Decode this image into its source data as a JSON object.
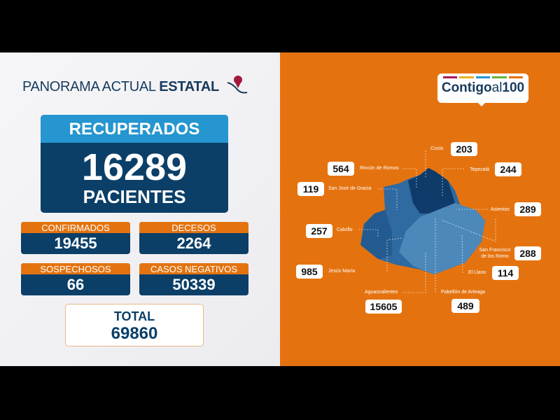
{
  "header": {
    "title_regular": "PANORAMA ACTUAL",
    "title_bold": "ESTATAL",
    "icon": "mexico-map-pin-icon"
  },
  "recuperados": {
    "label": "RECUPERADOS",
    "value": "16289",
    "unit": "PACIENTES"
  },
  "stats": [
    {
      "label": "CONFIRMADOS",
      "value": "19455"
    },
    {
      "label": "DECESOS",
      "value": "2264"
    },
    {
      "label": "SOSPECHOSOS",
      "value": "66"
    },
    {
      "label": "CASOS NEGATIVOS",
      "value": "50339"
    }
  ],
  "total": {
    "label": "TOTAL",
    "value": "69860"
  },
  "logo": {
    "text_bold": "Contigo",
    "text_light": "al",
    "text_num": "100",
    "bar_colors": [
      "#a3195b",
      "#e5b428",
      "#2596cf",
      "#6bb23a",
      "#e4730f"
    ]
  },
  "colors": {
    "orange": "#e4730f",
    "navy": "#0b3f68",
    "blue": "#2596cf"
  },
  "municipios": [
    {
      "name": "Cosío",
      "value": "203"
    },
    {
      "name": "Rincón de Romos",
      "value": "564"
    },
    {
      "name": "Tepezalá",
      "value": "244"
    },
    {
      "name": "San José de Gracia",
      "value": "119"
    },
    {
      "name": "Asientos",
      "value": "289"
    },
    {
      "name": "Calvillo",
      "value": "257"
    },
    {
      "name": "San Francisco de los Romo",
      "value": "288"
    },
    {
      "name": "Jesús María",
      "value": "985"
    },
    {
      "name": "El Llano",
      "value": "114"
    },
    {
      "name": "Aguascalientes",
      "value": "15605"
    },
    {
      "name": "Pabellón de Arteaga",
      "value": "489"
    }
  ]
}
